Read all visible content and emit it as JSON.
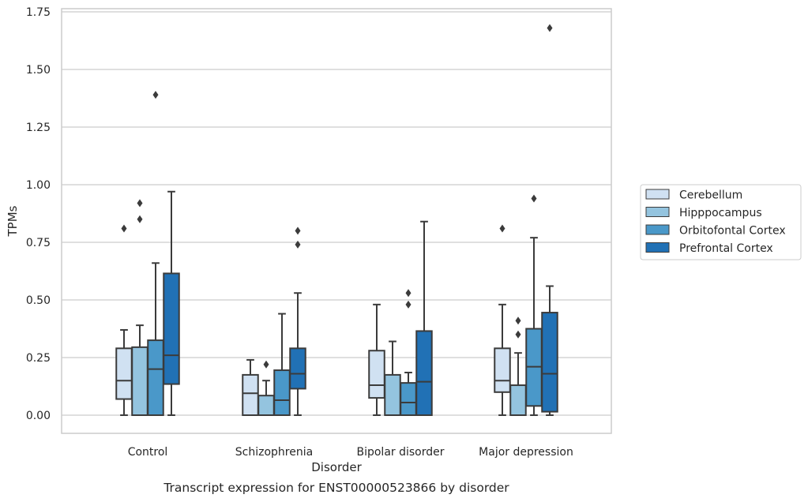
{
  "chart_data": {
    "type": "boxplot",
    "title": "",
    "caption": "Transcript expression for ENST00000523866 by disorder",
    "xlabel": "Disorder",
    "ylabel": "TPMs",
    "ylim": [
      -0.08,
      1.76
    ],
    "yticks": [
      0.0,
      0.25,
      0.5,
      0.75,
      1.0,
      1.25,
      1.5,
      1.75
    ],
    "ytick_labels": [
      "0.00",
      "0.25",
      "0.50",
      "0.75",
      "1.00",
      "1.25",
      "1.50",
      "1.75"
    ],
    "grid": "horizontal",
    "legend_position": "right",
    "categories": [
      "Control",
      "Schizophrenia",
      "Bipolar disorder",
      "Major depression"
    ],
    "series": [
      {
        "name": "Cerebellum",
        "color": "#d0e1f2",
        "boxes": [
          {
            "q1": 0.07,
            "median": 0.15,
            "q3": 0.29,
            "whisker_low": 0.0,
            "whisker_high": 0.37,
            "outliers": [
              0.81
            ]
          },
          {
            "q1": 0.0,
            "median": 0.095,
            "q3": 0.175,
            "whisker_low": 0.0,
            "whisker_high": 0.24,
            "outliers": []
          },
          {
            "q1": 0.075,
            "median": 0.13,
            "q3": 0.28,
            "whisker_low": 0.0,
            "whisker_high": 0.48,
            "outliers": []
          },
          {
            "q1": 0.1,
            "median": 0.15,
            "q3": 0.29,
            "whisker_low": 0.0,
            "whisker_high": 0.48,
            "outliers": [
              0.81
            ]
          }
        ]
      },
      {
        "name": "Hipppocampus",
        "color": "#94c4df",
        "boxes": [
          {
            "q1": 0.0,
            "median": 0.0,
            "q3": 0.295,
            "whisker_low": 0.0,
            "whisker_high": 0.39,
            "outliers": [
              0.85,
              0.92
            ]
          },
          {
            "q1": 0.0,
            "median": 0.0,
            "q3": 0.085,
            "whisker_low": 0.0,
            "whisker_high": 0.15,
            "outliers": [
              0.22
            ]
          },
          {
            "q1": 0.0,
            "median": 0.0,
            "q3": 0.175,
            "whisker_low": 0.0,
            "whisker_high": 0.32,
            "outliers": []
          },
          {
            "q1": 0.0,
            "median": 0.0,
            "q3": 0.13,
            "whisker_low": 0.0,
            "whisker_high": 0.27,
            "outliers": [
              0.35,
              0.41
            ]
          }
        ]
      },
      {
        "name": "Orbitofontal Cortex",
        "color": "#4a98c9",
        "boxes": [
          {
            "q1": 0.0,
            "median": 0.2,
            "q3": 0.325,
            "whisker_low": 0.0,
            "whisker_high": 0.66,
            "outliers": [
              1.39
            ]
          },
          {
            "q1": 0.0,
            "median": 0.065,
            "q3": 0.195,
            "whisker_low": 0.0,
            "whisker_high": 0.44,
            "outliers": []
          },
          {
            "q1": 0.0,
            "median": 0.055,
            "q3": 0.14,
            "whisker_low": 0.0,
            "whisker_high": 0.185,
            "outliers": [
              0.48,
              0.53
            ]
          },
          {
            "q1": 0.04,
            "median": 0.21,
            "q3": 0.375,
            "whisker_low": 0.0,
            "whisker_high": 0.77,
            "outliers": [
              0.94
            ]
          }
        ]
      },
      {
        "name": "Prefrontal Cortex",
        "color": "#2171b5",
        "boxes": [
          {
            "q1": 0.135,
            "median": 0.26,
            "q3": 0.615,
            "whisker_low": 0.0,
            "whisker_high": 0.97,
            "outliers": []
          },
          {
            "q1": 0.115,
            "median": 0.18,
            "q3": 0.29,
            "whisker_low": 0.0,
            "whisker_high": 0.53,
            "outliers": [
              0.74,
              0.8
            ]
          },
          {
            "q1": 0.0,
            "median": 0.145,
            "q3": 0.365,
            "whisker_low": 0.0,
            "whisker_high": 0.84,
            "outliers": []
          },
          {
            "q1": 0.015,
            "median": 0.18,
            "q3": 0.445,
            "whisker_low": 0.0,
            "whisker_high": 0.56,
            "outliers": [
              1.68
            ]
          }
        ]
      }
    ]
  }
}
